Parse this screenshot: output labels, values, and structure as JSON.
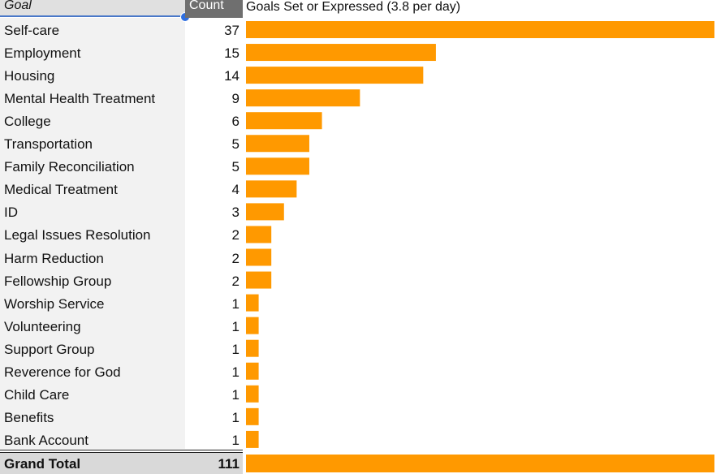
{
  "header": {
    "goal_label": "Goal",
    "count_label": "Count"
  },
  "chart_data": {
    "type": "bar",
    "orientation": "horizontal",
    "title": "Goals Set or Expressed (3.8 per day)",
    "bar_color": "#ff9900",
    "categories": [
      "Self-care",
      "Employment",
      "Housing",
      "Mental Health Treatment",
      "College",
      "Transportation",
      "Family Reconciliation",
      "Medical Treatment",
      "ID",
      "Legal Issues Resolution",
      "Harm Reduction",
      "Fellowship Group",
      "Worship Service",
      "Volunteering",
      "Support Group",
      "Reverence for God",
      "Child Care",
      "Benefits",
      "Bank Account"
    ],
    "values": [
      37,
      15,
      14,
      9,
      6,
      5,
      5,
      4,
      3,
      2,
      2,
      2,
      1,
      1,
      1,
      1,
      1,
      1,
      1
    ],
    "total": {
      "label": "Grand Total",
      "value": 111
    }
  }
}
